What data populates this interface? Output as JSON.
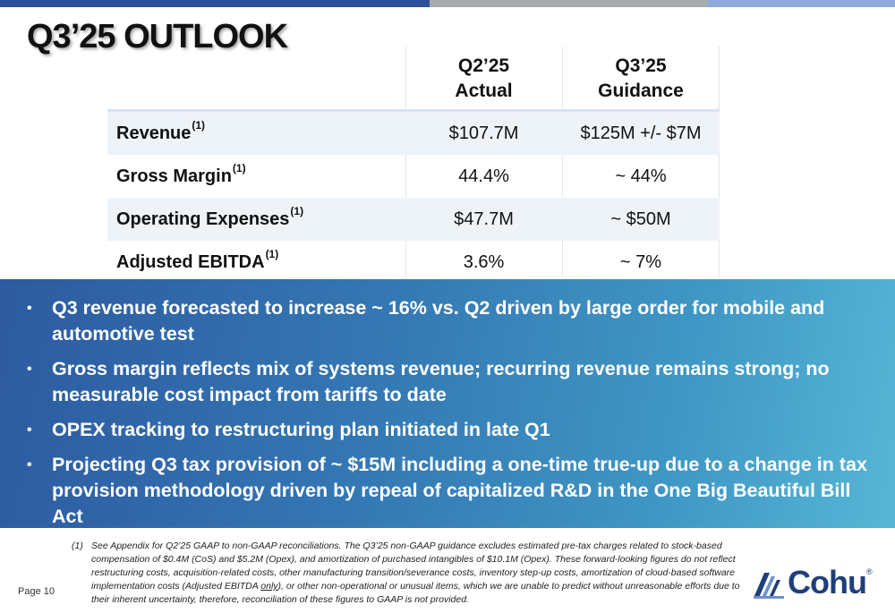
{
  "title": "Q3’25 OUTLOOK",
  "table": {
    "headers": [
      {
        "line1": "Q2’25",
        "line2": "Actual"
      },
      {
        "line1": "Q3’25",
        "line2": "Guidance"
      }
    ],
    "rows": [
      {
        "label": "Revenue",
        "note": "(1)",
        "actual": "$107.7M",
        "guidance": "$125M +/- $7M"
      },
      {
        "label": "Gross Margin",
        "note": "(1)",
        "actual": "44.4%",
        "guidance": "~ 44%"
      },
      {
        "label": "Operating Expenses",
        "note": "(1)",
        "actual": "$47.7M",
        "guidance": "~ $50M"
      },
      {
        "label": "Adjusted EBITDA",
        "note": "(1)",
        "actual": "3.6%",
        "guidance": "~ 7%"
      }
    ]
  },
  "bullets": [
    "Q3 revenue forecasted to increase ~ 16% vs. Q2 driven by large order for mobile and automotive test",
    "Gross margin reflects mix of systems revenue; recurring revenue remains strong; no measurable cost impact from tariffs to date",
    "OPEX tracking to restructuring plan initiated in late Q1",
    "Projecting Q3 tax provision of ~ $15M including a one-time true-up due to a change in tax provision methodology driven by repeal of capitalized R&D in the One Big Beautiful Bill Act"
  ],
  "bullet_marker": "•",
  "footnote": {
    "number": "(1)",
    "text_before": "See Appendix for Q2’25 GAAP to non-GAAP reconciliations. The Q3’25 non-GAAP guidance excludes estimated pre-tax charges related to stock-based compensation of $0.4M (CoS) and $5.2M (Opex), and amortization of purchased intangibles of $10.1M (Opex). These forward-looking figures do not reflect restructuring costs, acquisition-related costs, other manufacturing transition/severance costs, inventory step-up costs, amortization of cloud-based software implementation costs (Adjusted EBITDA ",
    "underlined": "only",
    "text_after": "), or other non-operational or unusual items, which we are unable to predict without unreasonable efforts due to their inherent uncertainty, therefore, reconciliation of these figures to GAAP is not provided."
  },
  "page_label": "Page 10",
  "logo": {
    "text": "Cohu",
    "mark": "®"
  },
  "colors": {
    "top_bar": [
      "#2d4f97",
      "#a7a9ac",
      "#8fa9db"
    ],
    "band_start": "#2d5aa0",
    "band_end": "#57b6d6",
    "logo": "#1f3f7a"
  }
}
